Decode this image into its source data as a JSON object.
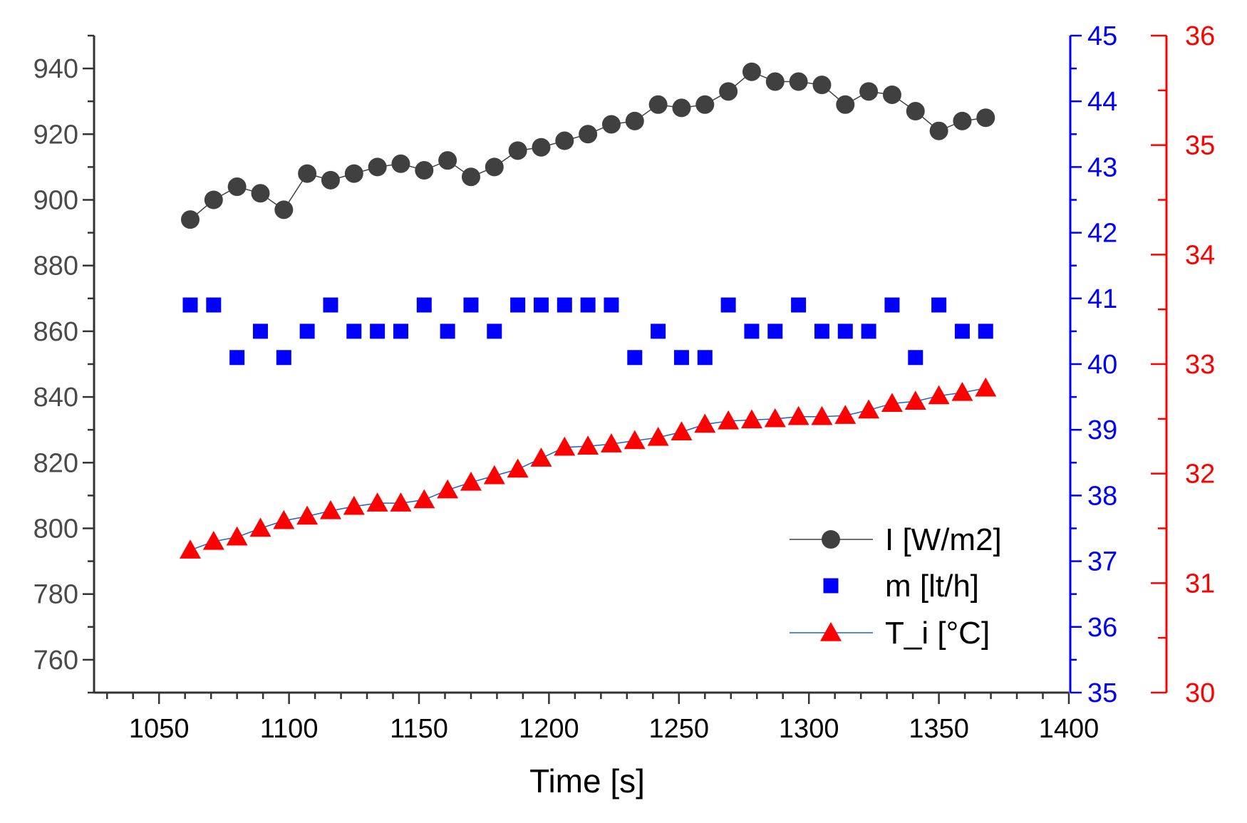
{
  "chart_data": {
    "type": "scatter",
    "xlabel": "Time [s]",
    "xlim": [
      1025,
      1400
    ],
    "xticks": [
      1050,
      1100,
      1150,
      1200,
      1250,
      1300,
      1350,
      1400
    ],
    "x": [
      1062,
      1071,
      1080,
      1089,
      1098,
      1107,
      1116,
      1125,
      1134,
      1143,
      1152,
      1161,
      1170,
      1179,
      1188,
      1197,
      1206,
      1215,
      1224,
      1233,
      1242,
      1251,
      1260,
      1269,
      1278,
      1287,
      1296,
      1305,
      1314,
      1323,
      1332,
      1341,
      1350,
      1359,
      1368
    ],
    "axes": {
      "left": {
        "range": [
          750,
          950
        ],
        "ticks": [
          760,
          780,
          800,
          820,
          840,
          860,
          880,
          900,
          920,
          940
        ],
        "color": "#4a4a4a"
      },
      "right1": {
        "range": [
          35,
          45
        ],
        "ticks": [
          35,
          36,
          37,
          38,
          39,
          40,
          41,
          42,
          43,
          44,
          45
        ],
        "color": "#0000ff"
      },
      "right2": {
        "range": [
          30,
          36
        ],
        "ticks": [
          30,
          31,
          32,
          33,
          34,
          35,
          36
        ],
        "color": "#ff0000"
      }
    },
    "series": [
      {
        "name": "I [W/m2]",
        "axis": "left",
        "marker": "circle",
        "line": true,
        "color": "#404040",
        "values": [
          894,
          900,
          904,
          902,
          897,
          908,
          906,
          908,
          910,
          911,
          909,
          912,
          907,
          910,
          915,
          916,
          918,
          920,
          923,
          924,
          929,
          928,
          929,
          933,
          939,
          936,
          936,
          935,
          929,
          933,
          932,
          927,
          921,
          924,
          925
        ]
      },
      {
        "name": "m [lt/h]",
        "axis": "right1",
        "marker": "square",
        "line": false,
        "color": "#0000ff",
        "values": [
          40.9,
          40.9,
          40.1,
          40.5,
          40.1,
          40.5,
          40.9,
          40.5,
          40.5,
          40.5,
          40.9,
          40.5,
          40.9,
          40.5,
          40.9,
          40.9,
          40.9,
          40.9,
          40.9,
          40.1,
          40.5,
          40.1,
          40.1,
          40.9,
          40.5,
          40.5,
          40.9,
          40.5,
          40.5,
          40.5,
          40.9,
          40.1,
          40.9,
          40.5,
          40.5
        ]
      },
      {
        "name": "T_i [°C]",
        "axis": "right2",
        "marker": "triangle",
        "line": true,
        "color": "#ff0000",
        "line_color": "#1f5fd6",
        "values": [
          31.3,
          31.38,
          31.42,
          31.5,
          31.57,
          31.61,
          31.66,
          31.7,
          31.73,
          31.73,
          31.76,
          31.85,
          31.92,
          31.98,
          32.04,
          32.14,
          32.24,
          32.25,
          32.27,
          32.3,
          32.33,
          32.38,
          32.45,
          32.48,
          32.49,
          32.5,
          32.52,
          32.52,
          32.53,
          32.58,
          32.64,
          32.66,
          32.71,
          32.74,
          32.78
        ]
      }
    ],
    "legend": {
      "position": "bottom-right",
      "entries": [
        "I [W/m2]",
        "m [lt/h]",
        "T_i [°C]"
      ]
    }
  }
}
